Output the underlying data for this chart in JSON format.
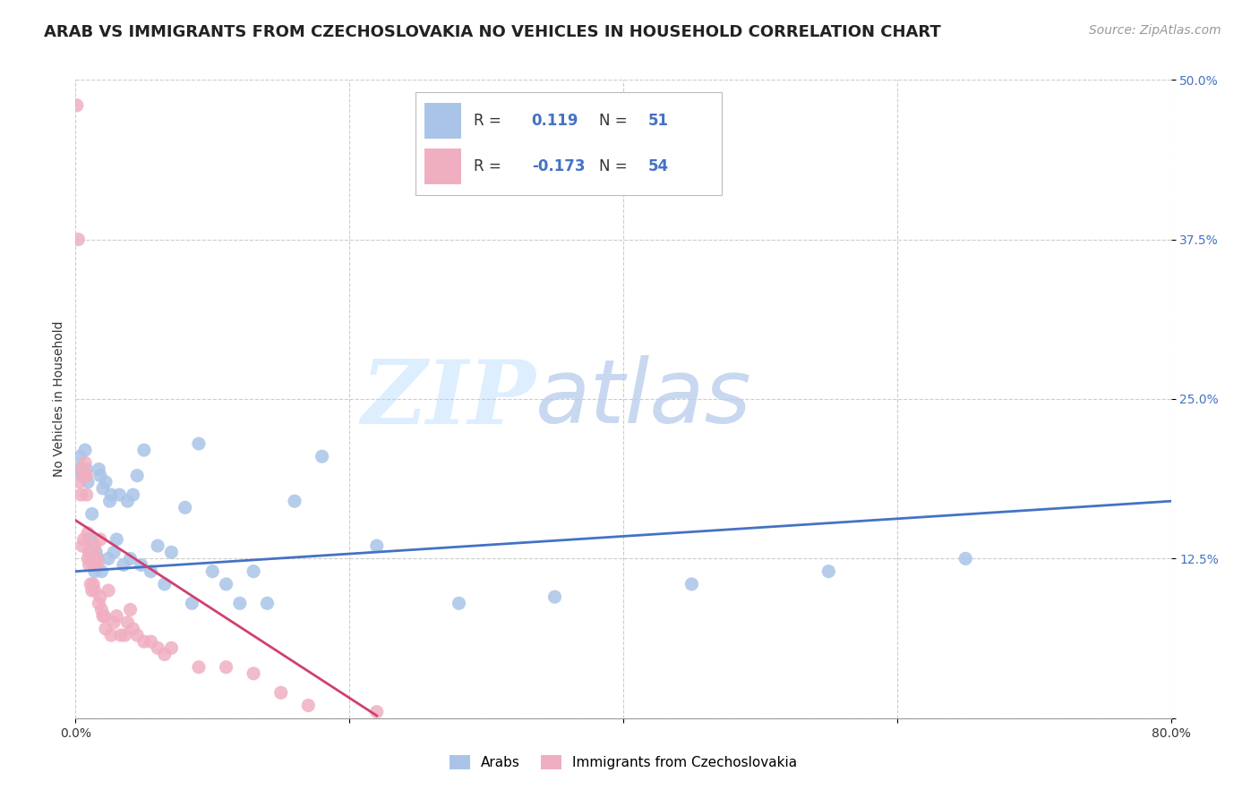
{
  "title": "ARAB VS IMMIGRANTS FROM CZECHOSLOVAKIA NO VEHICLES IN HOUSEHOLD CORRELATION CHART",
  "source": "Source: ZipAtlas.com",
  "ylabel": "No Vehicles in Household",
  "xlim": [
    0.0,
    0.8
  ],
  "ylim": [
    0.0,
    0.5
  ],
  "legend_arab_R": "0.119",
  "legend_arab_N": "51",
  "legend_czech_R": "-0.173",
  "legend_czech_N": "54",
  "arab_color": "#aac4e8",
  "czech_color": "#f0afc0",
  "arab_line_color": "#4472c4",
  "czech_line_color": "#d04070",
  "arab_scatter_x": [
    0.002,
    0.003,
    0.005,
    0.007,
    0.008,
    0.009,
    0.01,
    0.011,
    0.012,
    0.013,
    0.014,
    0.015,
    0.016,
    0.017,
    0.018,
    0.019,
    0.02,
    0.022,
    0.024,
    0.025,
    0.026,
    0.028,
    0.03,
    0.032,
    0.035,
    0.038,
    0.04,
    0.042,
    0.045,
    0.048,
    0.05,
    0.055,
    0.06,
    0.065,
    0.07,
    0.08,
    0.085,
    0.09,
    0.1,
    0.11,
    0.12,
    0.13,
    0.14,
    0.16,
    0.18,
    0.22,
    0.28,
    0.35,
    0.45,
    0.55,
    0.65
  ],
  "arab_scatter_y": [
    0.195,
    0.205,
    0.19,
    0.21,
    0.195,
    0.185,
    0.13,
    0.14,
    0.16,
    0.12,
    0.115,
    0.13,
    0.125,
    0.195,
    0.19,
    0.115,
    0.18,
    0.185,
    0.125,
    0.17,
    0.175,
    0.13,
    0.14,
    0.175,
    0.12,
    0.17,
    0.125,
    0.175,
    0.19,
    0.12,
    0.21,
    0.115,
    0.135,
    0.105,
    0.13,
    0.165,
    0.09,
    0.215,
    0.115,
    0.105,
    0.09,
    0.115,
    0.09,
    0.17,
    0.205,
    0.135,
    0.09,
    0.095,
    0.105,
    0.115,
    0.125
  ],
  "czech_scatter_x": [
    0.001,
    0.002,
    0.003,
    0.004,
    0.005,
    0.005,
    0.006,
    0.007,
    0.007,
    0.008,
    0.008,
    0.009,
    0.009,
    0.01,
    0.01,
    0.011,
    0.011,
    0.012,
    0.012,
    0.013,
    0.013,
    0.014,
    0.014,
    0.015,
    0.016,
    0.016,
    0.017,
    0.018,
    0.018,
    0.019,
    0.02,
    0.021,
    0.022,
    0.024,
    0.026,
    0.028,
    0.03,
    0.033,
    0.036,
    0.038,
    0.04,
    0.042,
    0.045,
    0.05,
    0.055,
    0.06,
    0.065,
    0.07,
    0.09,
    0.11,
    0.13,
    0.15,
    0.17,
    0.22
  ],
  "czech_scatter_y": [
    0.48,
    0.375,
    0.185,
    0.175,
    0.195,
    0.135,
    0.14,
    0.19,
    0.2,
    0.175,
    0.19,
    0.145,
    0.125,
    0.12,
    0.13,
    0.125,
    0.105,
    0.1,
    0.13,
    0.125,
    0.105,
    0.135,
    0.1,
    0.12,
    0.12,
    0.125,
    0.09,
    0.095,
    0.14,
    0.085,
    0.08,
    0.08,
    0.07,
    0.1,
    0.065,
    0.075,
    0.08,
    0.065,
    0.065,
    0.075,
    0.085,
    0.07,
    0.065,
    0.06,
    0.06,
    0.055,
    0.05,
    0.055,
    0.04,
    0.04,
    0.035,
    0.02,
    0.01,
    0.005
  ],
  "arab_trend_x0": 0.0,
  "arab_trend_y0": 0.115,
  "arab_trend_x1": 0.8,
  "arab_trend_y1": 0.17,
  "czech_trend_x0": 0.0,
  "czech_trend_y0": 0.155,
  "czech_trend_x1": 0.22,
  "czech_trend_y1": 0.002,
  "background_color": "#ffffff",
  "watermark_zip": "ZIP",
  "watermark_atlas": "atlas",
  "watermark_color": "#ddeeff",
  "watermark_atlas_color": "#c8d8f0",
  "grid_color": "#cccccc",
  "title_fontsize": 13,
  "axis_label_fontsize": 10,
  "tick_fontsize": 10,
  "legend_fontsize": 13,
  "source_fontsize": 10
}
